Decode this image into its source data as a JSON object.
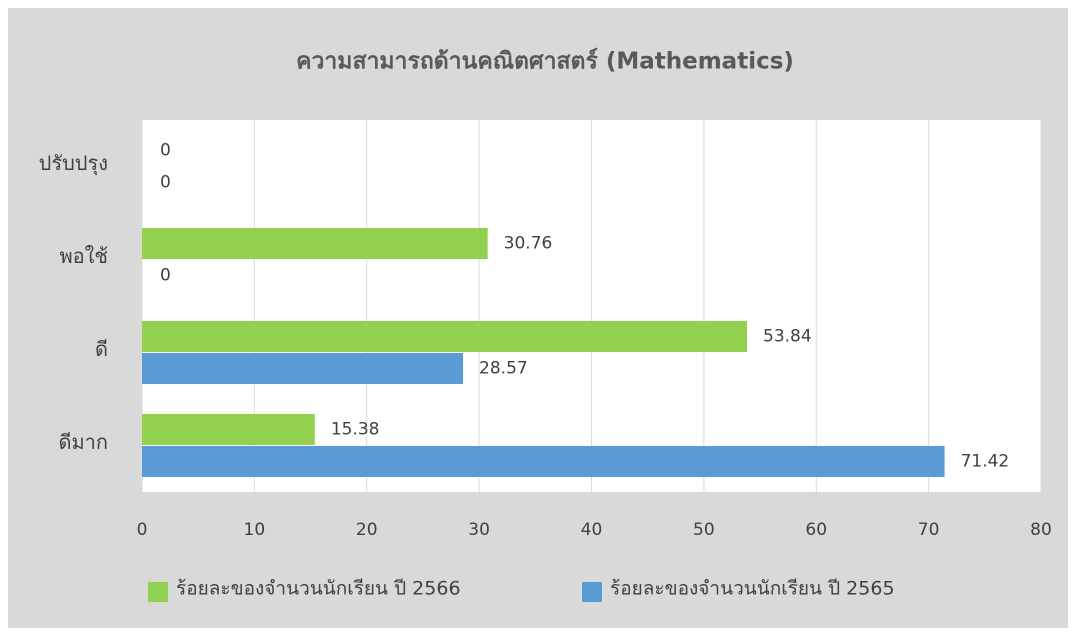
{
  "chart_data": {
    "type": "bar",
    "orientation": "horizontal",
    "title": "ความสามารถด้านคณิตศาสตร์ (Mathematics)",
    "categories": [
      "ปรับปรุง",
      "พอใช้",
      "ดี",
      "ดีมาก"
    ],
    "series": [
      {
        "name": "ร้อยละของจำนวนนักเรียน ปี 2566",
        "color": "#92d050",
        "values": [
          0,
          30.76,
          53.84,
          15.38
        ]
      },
      {
        "name": "ร้อยละของจำนวนนักเรียน ปี 2565",
        "color": "#5b9bd5",
        "values": [
          0,
          0,
          28.57,
          71.42
        ]
      }
    ],
    "xlim": [
      0,
      80
    ],
    "xticks": [
      0,
      10,
      20,
      30,
      40,
      50,
      60,
      70,
      80
    ],
    "grid": true,
    "legend": "bottom"
  }
}
